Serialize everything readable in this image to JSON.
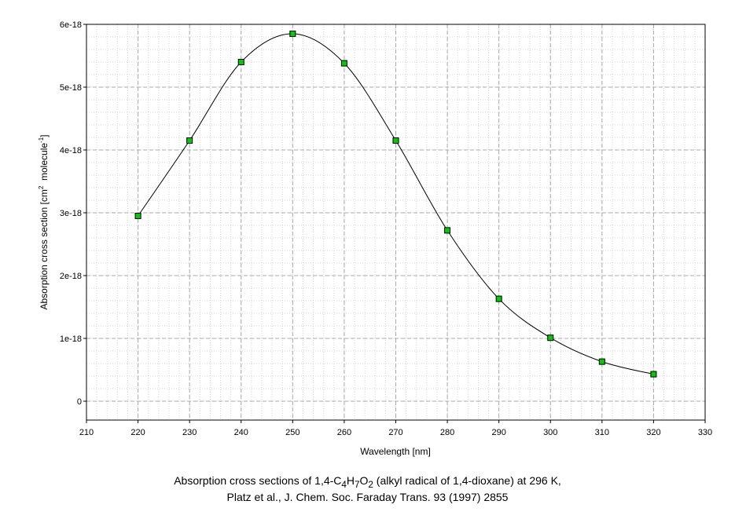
{
  "chart_data": {
    "type": "line",
    "title": "",
    "xlabel": "Wavelength [nm]",
    "ylabel": {
      "prefix": "Absorption cross section [cm",
      "exp1": "2",
      "middle": "  molecule",
      "exp2": "-1",
      "suffix": "]"
    },
    "xlim": [
      210,
      330
    ],
    "ylim": [
      -3e-19,
      6e-18
    ],
    "x_ticks": [
      210,
      220,
      230,
      240,
      250,
      260,
      270,
      280,
      290,
      300,
      310,
      320,
      330
    ],
    "x_tick_labels": [
      "210",
      "220",
      "230",
      "240",
      "250",
      "260",
      "270",
      "280",
      "290",
      "300",
      "310",
      "320",
      "330"
    ],
    "y_ticks": [
      0,
      1e-18,
      2e-18,
      3e-18,
      4e-18,
      5e-18,
      6e-18
    ],
    "y_tick_labels": [
      "0",
      "1e-18",
      "2e-18",
      "3e-18",
      "4e-18",
      "5e-18",
      "6e-18"
    ],
    "grid": true,
    "series": [
      {
        "x": [
          220,
          230,
          240,
          250,
          260,
          270,
          280,
          290,
          300,
          310,
          320
        ],
        "y": [
          2.95e-18,
          4.15e-18,
          5.4e-18,
          5.85e-18,
          5.38e-18,
          4.15e-18,
          2.72e-18,
          1.63e-18,
          1.01e-18,
          6.3e-19,
          4.3e-19
        ],
        "marker": "square",
        "marker_color": "#00cc00",
        "line_color": "#000000"
      }
    ]
  },
  "caption": {
    "line1_before": "Absorption cross sections of 1,4-C",
    "sub1": "4",
    "mid1": "H",
    "sub2": "7",
    "mid2": "O",
    "sub3": "2",
    "line1_after": " (alkyl radical of 1,4-dioxane) at 296 K,",
    "line2": "Platz et al., J. Chem. Soc. Faraday Trans. 93 (1997) 2855"
  }
}
